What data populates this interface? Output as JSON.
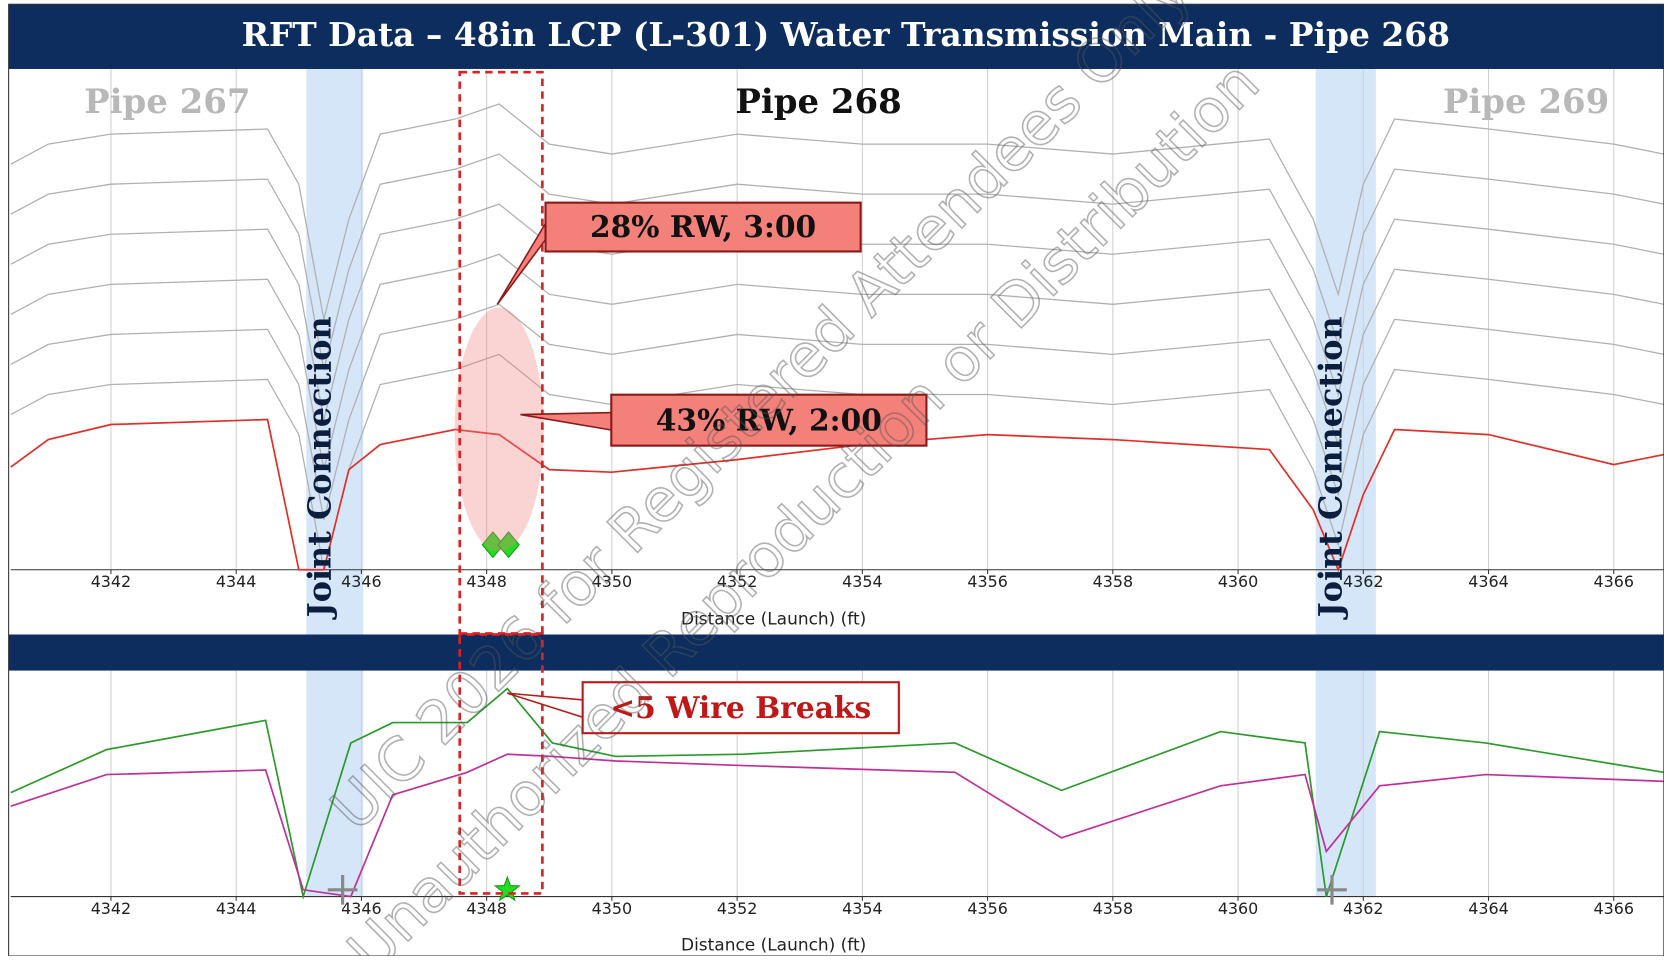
{
  "title": "RFT Data – 48in LCP (L-301) Water Transmission Main - Pipe 268",
  "watermark": [
    "UIC 2026 for Registered Attendees Only",
    "Unauthorized Reproduction or Distribution"
  ],
  "joints": [
    {
      "label": "Joint Connection",
      "range": [
        4345.12,
        4346.03
      ]
    },
    {
      "label": "Joint Connection",
      "range": [
        4361.24,
        4362.2
      ]
    }
  ],
  "highlight": [
    4347.57,
    4348.89
  ],
  "chart_data": [
    {
      "type": "line",
      "xlabel": "Distance (Launch) (ft)",
      "xlim": [
        4340.4,
        4366.8
      ],
      "xticks": [
        4342,
        4344,
        4346,
        4348,
        4350,
        4352,
        4354,
        4356,
        4358,
        4360,
        4362,
        4364,
        4366
      ],
      "ylim": [
        0,
        100
      ],
      "grid": true,
      "pipe_labels": [
        {
          "text": "Pipe 267",
          "x": 4342.9,
          "color": "#b8b8b8"
        },
        {
          "text": "Pipe 268",
          "x": 4353.3,
          "color": "#111111"
        },
        {
          "text": "Pipe 269",
          "x": 4364.6,
          "color": "#b8b8b8"
        }
      ],
      "x": [
        4340.4,
        4341,
        4342,
        4344.5,
        4345,
        4345.4,
        4345.8,
        4346.3,
        4347.5,
        4348.2,
        4349,
        4350,
        4352,
        4354,
        4356,
        4358,
        4360.5,
        4361.2,
        4361.6,
        4362,
        4362.5,
        4364,
        4366,
        4366.8
      ],
      "series": [
        {
          "color": "#b0b0b0",
          "values": [
            31,
            35,
            37,
            38,
            27,
            0,
            20,
            37,
            40,
            43,
            35,
            33,
            37,
            35,
            35,
            33,
            36,
            20,
            5,
            27,
            40,
            38,
            35,
            33
          ]
        },
        {
          "color": "#b0b0b0",
          "values": [
            41,
            45,
            47,
            48,
            37,
            10,
            30,
            47,
            50,
            53,
            45,
            43,
            47,
            45,
            45,
            43,
            46,
            30,
            15,
            37,
            50,
            48,
            45,
            43
          ]
        },
        {
          "color": "#b0b0b0",
          "values": [
            51,
            55,
            57,
            58,
            47,
            20,
            40,
            57,
            60,
            63,
            55,
            53,
            57,
            55,
            55,
            53,
            56,
            40,
            25,
            47,
            60,
            58,
            55,
            53
          ]
        },
        {
          "color": "#b0b0b0",
          "values": [
            61,
            65,
            67,
            68,
            57,
            30,
            50,
            67,
            70,
            73,
            65,
            63,
            67,
            65,
            65,
            63,
            66,
            50,
            35,
            57,
            70,
            68,
            65,
            63
          ]
        },
        {
          "color": "#b0b0b0",
          "values": [
            71,
            75,
            77,
            78,
            67,
            40,
            60,
            77,
            80,
            83,
            75,
            73,
            77,
            75,
            75,
            73,
            76,
            60,
            45,
            67,
            80,
            78,
            75,
            73
          ]
        },
        {
          "color": "#b0b0b0",
          "values": [
            81,
            85,
            87,
            88,
            77,
            50,
            70,
            87,
            90,
            93,
            85,
            83,
            87,
            85,
            85,
            83,
            86,
            70,
            55,
            77,
            90,
            88,
            85,
            83
          ]
        },
        {
          "color": "#e0302a",
          "values": [
            20.5,
            26,
            29,
            30,
            0,
            0,
            20,
            25,
            28,
            27,
            20,
            19.5,
            22,
            25,
            27,
            26,
            24,
            12,
            0,
            15,
            28,
            27,
            21,
            23
          ]
        }
      ],
      "markers": {
        "x": [
          4348.1,
          4348.35
        ],
        "y": [
          5,
          5
        ],
        "color": "#22dd22"
      },
      "annotations": [
        {
          "text": "28% RW, 3:00",
          "x": 4348.17,
          "y": 53
        },
        {
          "text": "43% RW, 2:00",
          "x": 4348.54,
          "y": 31
        }
      ]
    },
    {
      "type": "line",
      "xlabel": "Distance (Launch) (ft)",
      "xlim": [
        4340.4,
        4366.8
      ],
      "xticks": [
        4342,
        4344,
        4346,
        4348,
        4350,
        4352,
        4354,
        4356,
        4358,
        4360,
        4362,
        4364,
        4366
      ],
      "ylim": [
        0,
        100
      ],
      "grid": true,
      "x": [
        4340.4,
        4341.93,
        4344.47,
        4345.07,
        4345.83,
        4346.5,
        4347.69,
        4348.33,
        4349.05,
        4350.06,
        4352.1,
        4355.48,
        4357.18,
        4359.72,
        4361.07,
        4361.41,
        4362.26,
        4363.95,
        4366.8
      ],
      "series": [
        {
          "color": "#2a9a2a",
          "values": [
            46,
            65,
            78,
            0,
            68,
            77,
            77,
            92,
            68,
            62,
            63,
            68,
            47,
            73,
            68,
            0,
            73,
            68,
            55
          ]
        },
        {
          "color": "#c0309a",
          "values": [
            40,
            54,
            56,
            3,
            0,
            45,
            55,
            63,
            62,
            60,
            58,
            55,
            26,
            49,
            54,
            20,
            49,
            54,
            51
          ]
        }
      ],
      "star": {
        "x": 4348.33,
        "y": 3,
        "color": "#22dd22"
      },
      "crosses": {
        "x": [
          4345.7,
          4361.5
        ],
        "y": [
          3,
          3
        ]
      },
      "annotations": [
        {
          "text": "<5 Wire Breaks",
          "x": 4348.33,
          "y": 90
        }
      ]
    }
  ]
}
